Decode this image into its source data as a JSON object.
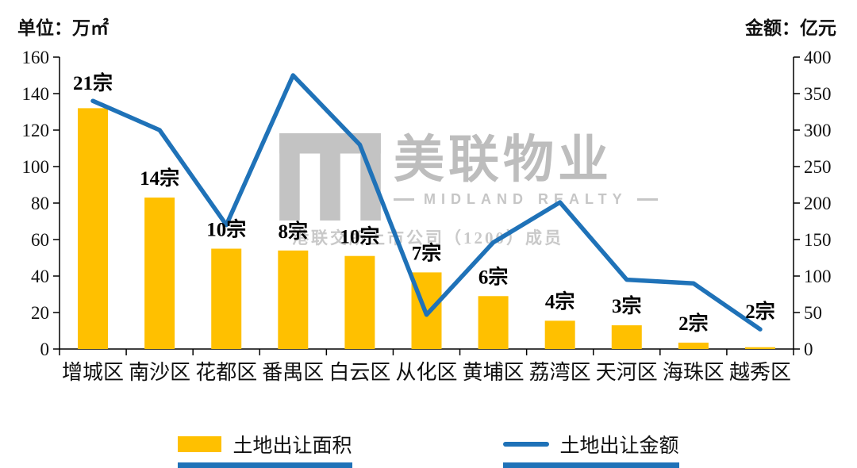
{
  "header": {
    "left_unit": "单位：万㎡",
    "right_unit": "金额：亿元"
  },
  "watermark": {
    "brand": "美联物业",
    "sub": "MIDLAND REALTY",
    "note": "港联交所上市公司（1200）成员"
  },
  "legend": {
    "area_label": "土地出让面积",
    "amount_label": "土地出让金额"
  },
  "colors": {
    "bar": "#FFC000",
    "line": "#1F72B8",
    "axis": "#000000",
    "text": "#111111",
    "watermark": "#c3c3c3"
  },
  "chart_data": {
    "type": "bar",
    "subtype": "combo-bar-line",
    "categories": [
      "增城区",
      "南沙区",
      "花都区",
      "番禺区",
      "白云区",
      "从化区",
      "黄埔区",
      "荔湾区",
      "天河区",
      "海珠区",
      "越秀区"
    ],
    "series": [
      {
        "name": "土地出让面积",
        "type": "bar",
        "axis": "left",
        "unit": "万㎡",
        "color": "#FFC000",
        "values": [
          132,
          83,
          55,
          54,
          51,
          42,
          29,
          15.5,
          13,
          3.5,
          1
        ]
      },
      {
        "name": "土地出让金额",
        "type": "line",
        "axis": "right",
        "unit": "亿元",
        "color": "#1F72B8",
        "values": [
          340,
          300,
          170,
          375,
          280,
          47,
          146,
          201,
          95,
          90,
          27
        ]
      }
    ],
    "bar_labels": [
      "21宗",
      "14宗",
      "10宗",
      "8宗",
      "10宗",
      "7宗",
      "6宗",
      "4宗",
      "3宗",
      "2宗",
      "2宗"
    ],
    "left_axis": {
      "min": 0,
      "max": 160,
      "step": 20,
      "label": "单位：万㎡"
    },
    "right_axis": {
      "min": 0,
      "max": 400,
      "step": 50,
      "label": "金额：亿元"
    },
    "legend_position": "bottom",
    "grid": false
  }
}
